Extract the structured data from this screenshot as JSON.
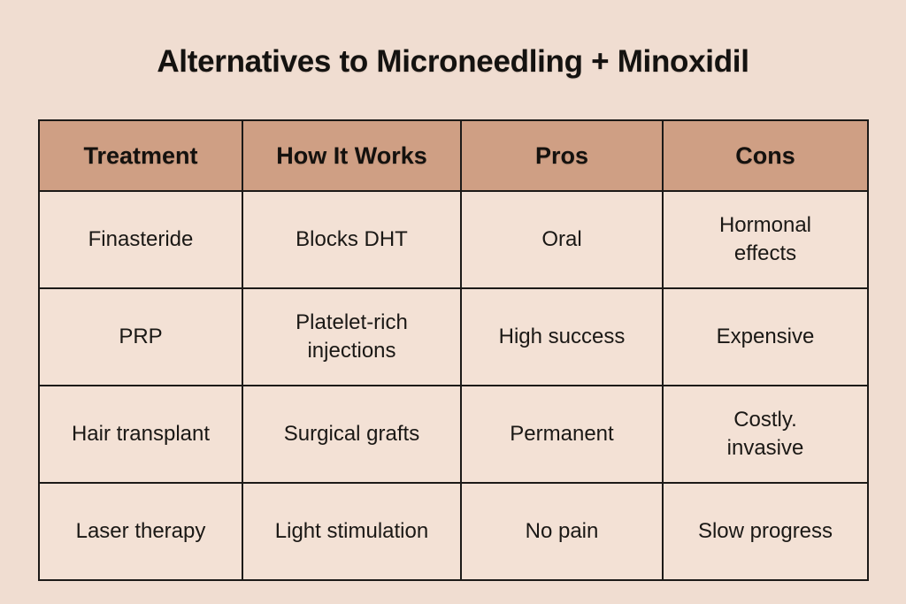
{
  "page": {
    "title": "Alternatives to Microneedling + Minoxidil"
  },
  "colors": {
    "page_background": "#f0ddd1",
    "cell_background": "#f3e1d5",
    "header_background": "#cf9f84",
    "border": "#1c1a18",
    "text": "#1a1815"
  },
  "table": {
    "headers": [
      "Treatment",
      "How It Works",
      "Pros",
      "Cons"
    ],
    "rows": [
      {
        "cells": [
          "Finasteride",
          "Blocks DHT",
          "Oral",
          "Hormonal\neffects"
        ]
      },
      {
        "cells": [
          "PRP",
          "Platelet-rich\ninjections",
          "High success",
          "Expensive"
        ]
      },
      {
        "cells": [
          "Hair transplant",
          "Surgical grafts",
          "Permanent",
          "Costly.\ninvasive"
        ]
      },
      {
        "cells": [
          "Laser therapy",
          "Light stimulation",
          "No pain",
          "Slow progress"
        ]
      }
    ]
  },
  "chart_data": {
    "type": "table",
    "title": "Alternatives to Microneedling + Minoxidil",
    "columns": [
      "Treatment",
      "How It Works",
      "Pros",
      "Cons"
    ],
    "rows": [
      [
        "Finasteride",
        "Blocks DHT",
        "Oral",
        "Hormonal effects"
      ],
      [
        "PRP",
        "Platelet-rich injections",
        "High success",
        "Expensive"
      ],
      [
        "Hair transplant",
        "Surgical grafts",
        "Permanent",
        "Costly. invasive"
      ],
      [
        "Laser therapy",
        "Light stimulation",
        "No pain",
        "Slow progress"
      ]
    ]
  }
}
